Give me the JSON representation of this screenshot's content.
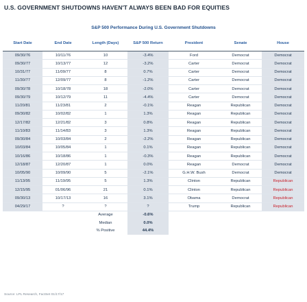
{
  "title": "U.S. GOVERNMENT SHUTDOWNS HAVEN'T ALWAYS BEEN BAD FOR EQUITIES",
  "subtitle": "S&P 500 Performance During U.S. Government Shutdowns",
  "source": "Source: LPL Research, FactSet 01/17/17",
  "colors": {
    "accent_blue": "#2a5da0",
    "negative_red": "#c8202a",
    "shade": "#dee3ea"
  },
  "chart_data": {
    "type": "table",
    "columns": [
      "Start Date",
      "End Date",
      "Length (Days)",
      "S&P 500 Return",
      "President",
      "Senate",
      "House"
    ],
    "rows": [
      [
        "09/30/76",
        "10/11/76",
        "10",
        "-3.4%",
        "Ford",
        "Democrat",
        "Democrat"
      ],
      [
        "09/30/77",
        "10/13/77",
        "12",
        "-3.2%",
        "Carter",
        "Democrat",
        "Democrat"
      ],
      [
        "10/31/77",
        "11/09/77",
        "8",
        "0.7%",
        "Carter",
        "Democrat",
        "Democrat"
      ],
      [
        "11/30/77",
        "12/09/77",
        "8",
        "-1.2%",
        "Carter",
        "Democrat",
        "Democrat"
      ],
      [
        "09/30/78",
        "10/18/78",
        "18",
        "-2.0%",
        "Carter",
        "Democrat",
        "Democrat"
      ],
      [
        "09/30/79",
        "10/12/79",
        "11",
        "-4.4%",
        "Carter",
        "Democrat",
        "Democrat"
      ],
      [
        "11/20/81",
        "11/23/81",
        "2",
        "-0.1%",
        "Reagan",
        "Republican",
        "Democrat"
      ],
      [
        "09/30/82",
        "10/02/82",
        "1",
        "1.3%",
        "Reagan",
        "Republican",
        "Democrat"
      ],
      [
        "12/17/82",
        "12/21/82",
        "3",
        "0.8%",
        "Reagan",
        "Republican",
        "Democrat"
      ],
      [
        "11/10/83",
        "11/14/83",
        "3",
        "1.3%",
        "Reagan",
        "Republican",
        "Democrat"
      ],
      [
        "09/30/84",
        "10/03/84",
        "2",
        "-2.2%",
        "Reagan",
        "Republican",
        "Democrat"
      ],
      [
        "10/03/84",
        "10/05/84",
        "1",
        "0.1%",
        "Reagan",
        "Republican",
        "Democrat"
      ],
      [
        "10/16/86",
        "10/18/86",
        "1",
        "-0.3%",
        "Reagan",
        "Republican",
        "Democrat"
      ],
      [
        "12/18/87",
        "12/20/87",
        "1",
        "0.0%",
        "Reagan",
        "Democrat",
        "Democrat"
      ],
      [
        "10/05/90",
        "10/09/90",
        "5",
        "-2.1%",
        "G.H.W. Bush",
        "Democrat",
        "Democrat"
      ],
      [
        "11/13/95",
        "11/19/95",
        "5",
        "1.3%",
        "Clinton",
        "Republican",
        "Republican"
      ],
      [
        "12/15/95",
        "01/06/96",
        "21",
        "0.1%",
        "Clinton",
        "Republican",
        "Republican"
      ],
      [
        "09/30/13",
        "10/17/13",
        "16",
        "3.1%",
        "Obama",
        "Democrat",
        "Republican"
      ],
      [
        "04/29/17",
        "?",
        "?",
        "?",
        "Trump",
        "Republican",
        "Republican"
      ]
    ],
    "summary": [
      {
        "label": "Average",
        "value": "-0.6%"
      },
      {
        "label": "Median",
        "value": "0.0%"
      },
      {
        "label": "% Positive",
        "value": "44.4%"
      }
    ]
  }
}
